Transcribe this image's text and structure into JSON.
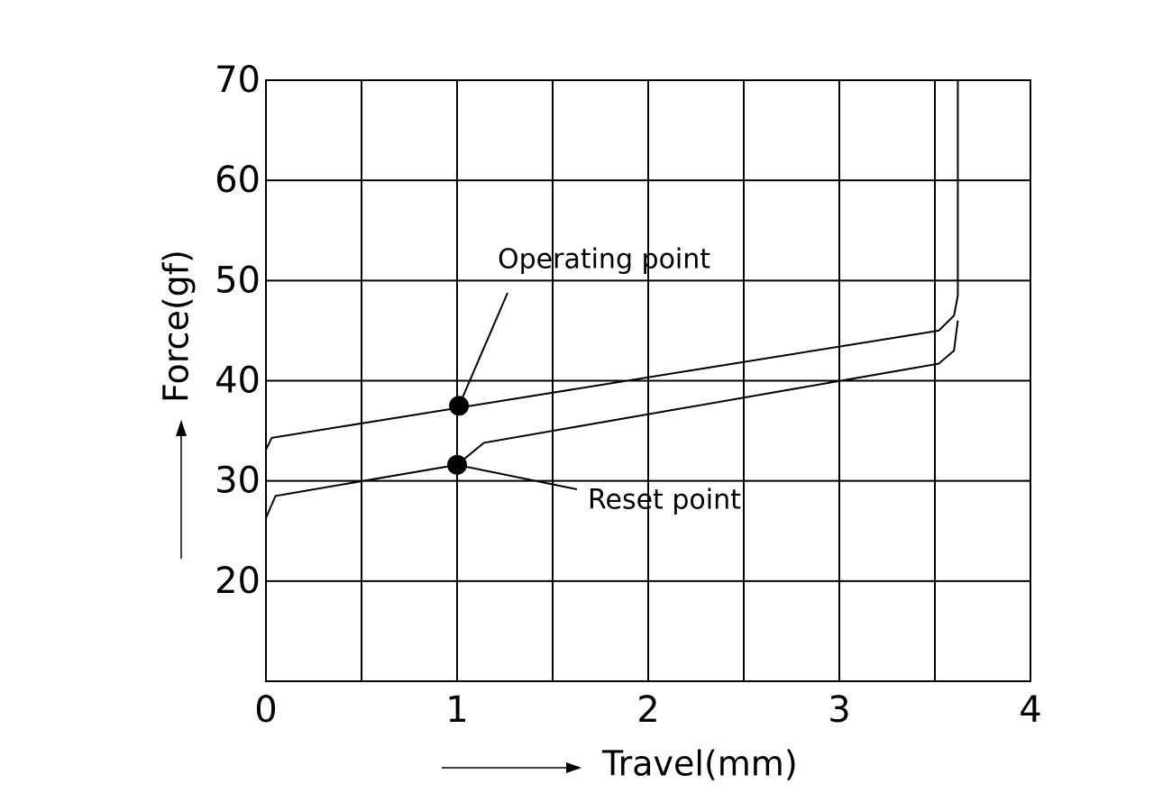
{
  "chart_data": {
    "type": "line",
    "x_label": "Travel(mm)",
    "y_label": "Force(gf)",
    "xlim": [
      0,
      4
    ],
    "ylim": [
      10,
      70
    ],
    "xticks": [
      0,
      1,
      2,
      3,
      4
    ],
    "yticks": [
      20,
      30,
      40,
      50,
      60,
      70
    ],
    "x_minor_grid": [
      0.5,
      1.5,
      2.5,
      3.5
    ],
    "grid": true,
    "color": "#000000",
    "series": [
      {
        "color": "#000000",
        "x": [
          0,
          0.03,
          3.52,
          3.6,
          3.62,
          3.62
        ],
        "values": [
          33.1,
          34.3,
          45.0,
          46.5,
          48.5,
          70
        ]
      },
      {
        "color": "#000000",
        "x": [
          0,
          0.05,
          1.0,
          1.14,
          3.52,
          3.6,
          3.62
        ],
        "values": [
          26.3,
          28.5,
          31.6,
          33.8,
          41.7,
          43.0,
          46.0
        ]
      }
    ],
    "annotations": [
      {
        "text": "Operating point",
        "x": 1.01,
        "y": 37.5
      },
      {
        "text": "Reset point",
        "x": 1.0,
        "y": 31.6
      }
    ]
  }
}
